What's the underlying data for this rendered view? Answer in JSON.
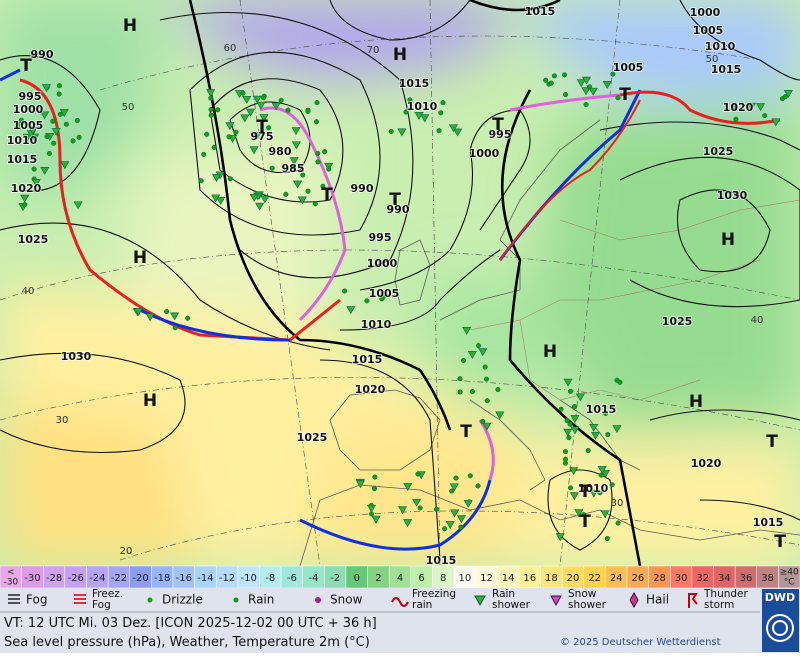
{
  "map": {
    "pressure_labels": [
      "990",
      "995",
      "1000",
      "1005",
      "1010",
      "1015",
      "1020",
      "1025",
      "1030",
      "1015",
      "1000",
      "1005",
      "1010",
      "1015",
      "1005",
      "1020",
      "1025",
      "1030",
      "1015",
      "1010",
      "975",
      "980",
      "985",
      "990",
      "995",
      "1000",
      "1005",
      "1010",
      "1015",
      "1020",
      "1025",
      "995",
      "1000",
      "990",
      "1025",
      "1015",
      "1020",
      "1010",
      "1015",
      "1015"
    ],
    "latitude_labels": [
      "50",
      "40",
      "30",
      "20",
      "60",
      "70",
      "50",
      "40",
      "30"
    ],
    "centers": [
      "H",
      "H",
      "T",
      "T",
      "T",
      "T",
      "H",
      "H",
      "T",
      "H",
      "H",
      "H",
      "T",
      "T",
      "T",
      "T",
      "T",
      "T"
    ]
  },
  "scale": {
    "low_label": [
      "<",
      "-30"
    ],
    "low_color": "#e6a8e6",
    "values": [
      -30,
      -28,
      -26,
      -24,
      -22,
      -20,
      -18,
      -16,
      -14,
      -12,
      -10,
      -8,
      -6,
      -4,
      -2,
      0,
      2,
      4,
      6,
      8,
      10,
      12,
      14,
      16,
      18,
      20,
      22,
      24,
      26,
      28,
      30,
      32,
      34,
      36,
      38
    ],
    "colors": [
      "#dc9be6",
      "#d2a0f0",
      "#c3a0f5",
      "#b4a5f5",
      "#a5a5f5",
      "#8c9cf0",
      "#96b4ff",
      "#a0c3ff",
      "#aad2ff",
      "#b4dcff",
      "#c0e6ff",
      "#b4ecf0",
      "#a0e6dc",
      "#96e6c8",
      "#8cdcb4",
      "#64c878",
      "#82d282",
      "#a0e196",
      "#bef0aa",
      "#dcf5c8",
      "#fafaf0",
      "#fffadc",
      "#fff5b9",
      "#fff096",
      "#ffe678",
      "#ffdc64",
      "#ffd250",
      "#ffbe50",
      "#ffaa50",
      "#ff9650",
      "#ff7864",
      "#f06464",
      "#e06464",
      "#d06e6e",
      "#c08282"
    ],
    "high_label": [
      "≥40",
      "°C"
    ],
    "high_color": "#b49696"
  },
  "legend": {
    "items": [
      [
        "Fog"
      ],
      [
        "Freez.",
        "Fog"
      ],
      [
        "Drizzle"
      ],
      [
        "Rain"
      ],
      [
        "Snow"
      ],
      [
        "Freezing",
        "rain"
      ],
      [
        "Rain",
        "shower"
      ],
      [
        "Snow",
        "shower"
      ],
      [
        "Hail"
      ],
      [
        "Thunder",
        "storm"
      ]
    ]
  },
  "footer": {
    "valid_time": "VT: 12 UTC Mi.  03 Dez. [ICON 2025-12-02  00 UTC + 36 h]",
    "description": "Sea level pressure (hPa), Weather, Temperature 2m (°C)",
    "copyright": "© 2025 Deutscher Wetterdienst",
    "logo": "DWD"
  }
}
